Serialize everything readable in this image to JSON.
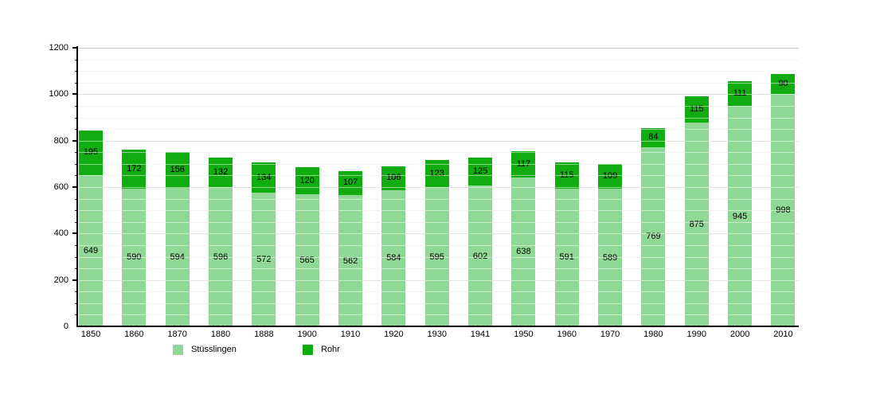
{
  "chart_data": {
    "type": "bar",
    "stacked": true,
    "title": "",
    "xlabel": "",
    "ylabel": "",
    "categories": [
      "1850",
      "1860",
      "1870",
      "1880",
      "1888",
      "1900",
      "1910",
      "1920",
      "1930",
      "1941",
      "1950",
      "1960",
      "1970",
      "1980",
      "1990",
      "2000",
      "2010"
    ],
    "series": [
      {
        "name": "Stüsslingen",
        "color": "#90d895",
        "values": [
          649,
          590,
          594,
          596,
          572,
          565,
          562,
          584,
          595,
          602,
          638,
          591,
          589,
          769,
          875,
          945,
          998
        ]
      },
      {
        "name": "Rohr",
        "color": "#10ac10",
        "values": [
          195,
          172,
          156,
          132,
          134,
          120,
          107,
          106,
          123,
          125,
          117,
          115,
          109,
          84,
          115,
          111,
          90
        ]
      }
    ],
    "ylim": [
      0,
      1200
    ],
    "y_major_ticks": [
      0,
      200,
      400,
      600,
      800,
      1000,
      1200
    ],
    "y_minor_step": 50,
    "grid": true,
    "legend_position": "bottom-left"
  },
  "legend": {
    "items": [
      {
        "label": "Stüsslingen",
        "color": "#90d895"
      },
      {
        "label": "Rohr",
        "color": "#10ac10"
      }
    ]
  }
}
